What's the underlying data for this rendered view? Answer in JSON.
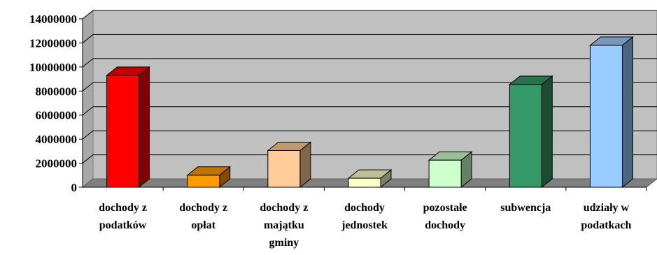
{
  "chart_data": {
    "type": "bar",
    "categories": [
      [
        "dochody z",
        "podatków"
      ],
      [
        "dochody z",
        "opłat"
      ],
      [
        "dochody z",
        "majątku",
        "gminy"
      ],
      [
        "dochody",
        "jednostek"
      ],
      [
        "pozostałe",
        "dochody"
      ],
      [
        "subwencja"
      ],
      [
        "udziały w",
        "podatkach"
      ]
    ],
    "values": [
      9300000,
      1000000,
      3050000,
      750000,
      2250000,
      8550000,
      11800000
    ],
    "colors": [
      "#ff0000",
      "#ff9900",
      "#ffcc99",
      "#ffffcc",
      "#ccffcc",
      "#339966",
      "#99ccff"
    ],
    "y_ticks": [
      "0",
      "2000000",
      "4000000",
      "6000000",
      "8000000",
      "10000000",
      "12000000",
      "14000000"
    ],
    "ylim": [
      0,
      14000000
    ],
    "grid": true,
    "legend": "none",
    "style": "3d-column",
    "title": "",
    "xlabel": "",
    "ylabel": ""
  }
}
